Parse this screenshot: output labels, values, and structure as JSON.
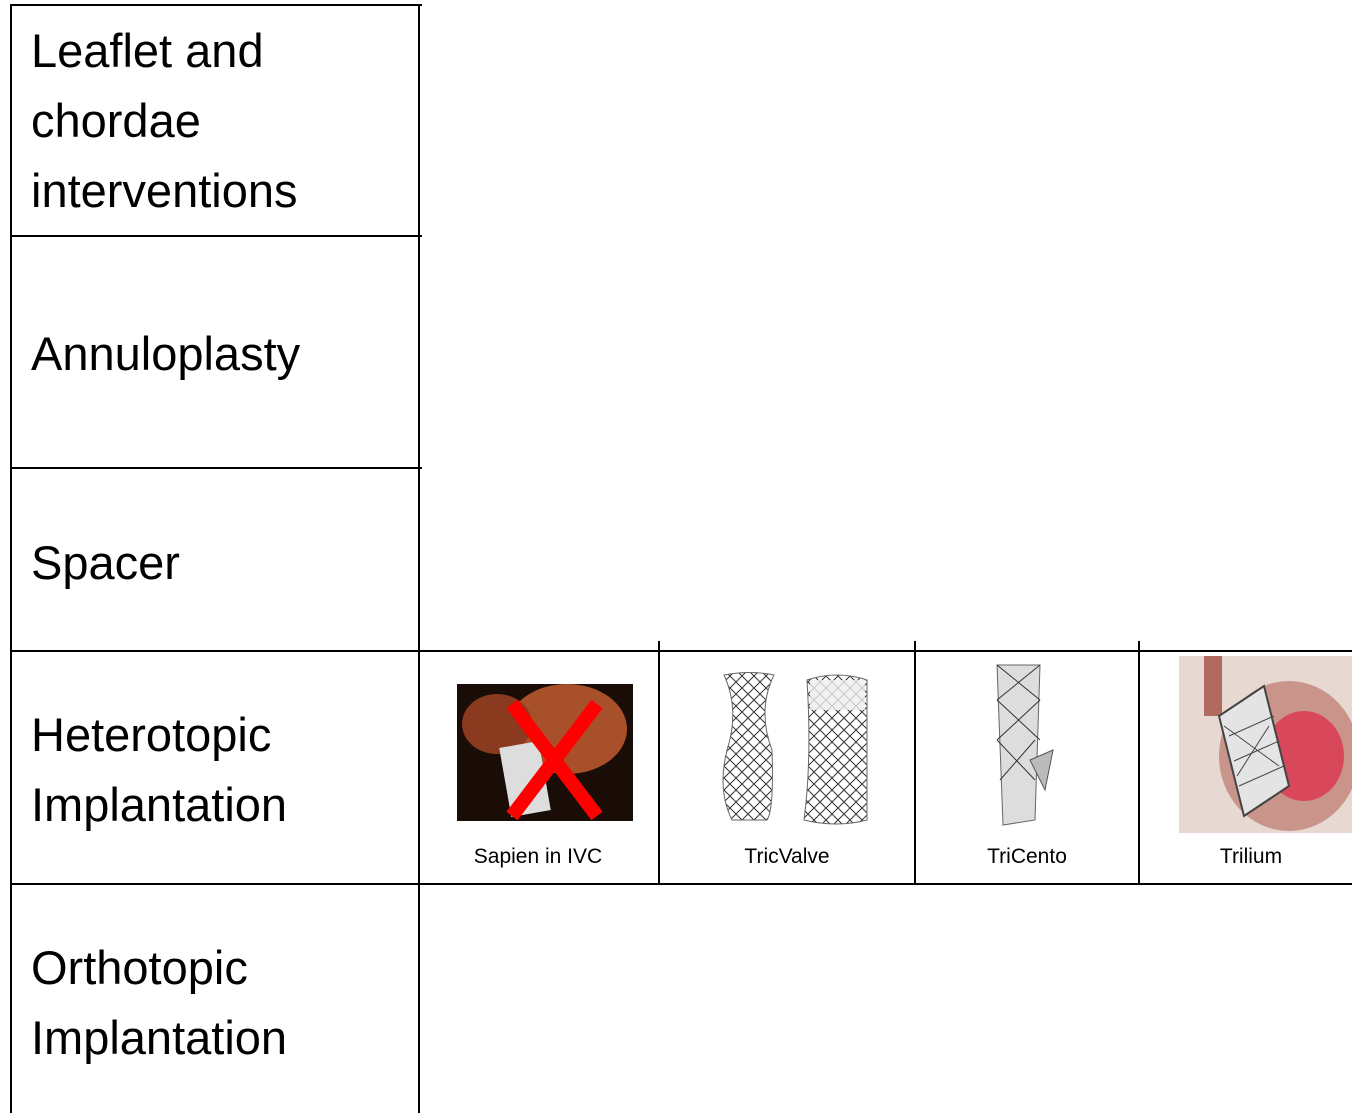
{
  "rows": [
    "Leaflet and chordae interventions",
    "Annuloplasty",
    "Spacer",
    "Heterotopic Implantation",
    "Orthotopic Implantation"
  ],
  "devices": [
    "Sapien in IVC",
    "TricValve",
    "TriCento",
    "Trilium"
  ]
}
